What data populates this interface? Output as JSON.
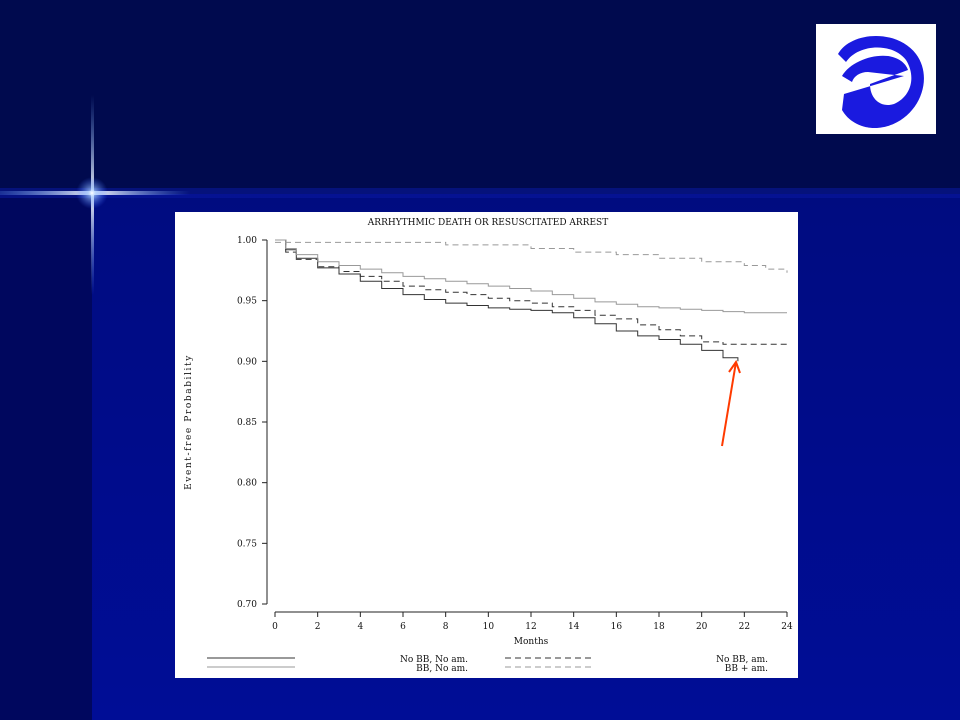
{
  "colors": {
    "slide_top": "#000a4e",
    "slide_main": "#000a86",
    "left_band": "#00075e",
    "flare": "#7fb3ff",
    "logo_blue": "#1a1adf",
    "arrow": "#ff3a00"
  },
  "logo": {
    "icon": "esc-logo-icon"
  },
  "chart_data": {
    "type": "line",
    "title": "ARRHYTHMIC DEATH OR RESUSCITATED ARREST",
    "xlabel": "Months",
    "ylabel": "Event-free Probability",
    "xlim": [
      0,
      24
    ],
    "ylim": [
      0.7,
      1.0
    ],
    "x_ticks": [
      "0",
      "2",
      "4",
      "6",
      "8",
      "10",
      "12",
      "14",
      "16",
      "18",
      "20",
      "22",
      "24"
    ],
    "y_ticks": [
      "0.70",
      "0.75",
      "0.80",
      "0.85",
      "0.90",
      "0.95",
      "1.00"
    ],
    "grid": false,
    "legend_position": "bottom",
    "series": [
      {
        "name": "No BB, No am.",
        "style": "solid",
        "color": "#333333",
        "points": [
          [
            0,
            1.0
          ],
          [
            0.5,
            0.992
          ],
          [
            1,
            0.985
          ],
          [
            2,
            0.977
          ],
          [
            3,
            0.972
          ],
          [
            4,
            0.966
          ],
          [
            5,
            0.96
          ],
          [
            6,
            0.955
          ],
          [
            7,
            0.951
          ],
          [
            8,
            0.948
          ],
          [
            9,
            0.946
          ],
          [
            10,
            0.944
          ],
          [
            11,
            0.943
          ],
          [
            12,
            0.942
          ],
          [
            13,
            0.94
          ],
          [
            14,
            0.936
          ],
          [
            15,
            0.931
          ],
          [
            16,
            0.925
          ],
          [
            17,
            0.921
          ],
          [
            18,
            0.918
          ],
          [
            19,
            0.914
          ],
          [
            20,
            0.909
          ],
          [
            21,
            0.903
          ],
          [
            21.7,
            0.9
          ]
        ]
      },
      {
        "name": "No BB, am.",
        "style": "dashed",
        "color": "#333333",
        "points": [
          [
            0,
            1.0
          ],
          [
            0.5,
            0.99
          ],
          [
            1,
            0.984
          ],
          [
            2,
            0.978
          ],
          [
            3,
            0.974
          ],
          [
            4,
            0.97
          ],
          [
            5,
            0.966
          ],
          [
            6,
            0.962
          ],
          [
            7,
            0.959
          ],
          [
            8,
            0.957
          ],
          [
            9,
            0.955
          ],
          [
            10,
            0.952
          ],
          [
            11,
            0.95
          ],
          [
            12,
            0.948
          ],
          [
            13,
            0.945
          ],
          [
            14,
            0.942
          ],
          [
            15,
            0.938
          ],
          [
            16,
            0.935
          ],
          [
            17,
            0.93
          ],
          [
            18,
            0.926
          ],
          [
            19,
            0.921
          ],
          [
            20,
            0.916
          ],
          [
            21,
            0.914
          ],
          [
            22,
            0.914
          ],
          [
            24,
            0.914
          ]
        ]
      },
      {
        "name": "BB, No am.",
        "style": "solid",
        "color": "#999999",
        "points": [
          [
            0,
            1.0
          ],
          [
            0.5,
            0.993
          ],
          [
            1,
            0.988
          ],
          [
            2,
            0.982
          ],
          [
            3,
            0.979
          ],
          [
            4,
            0.976
          ],
          [
            5,
            0.973
          ],
          [
            6,
            0.97
          ],
          [
            7,
            0.968
          ],
          [
            8,
            0.966
          ],
          [
            9,
            0.964
          ],
          [
            10,
            0.962
          ],
          [
            11,
            0.96
          ],
          [
            12,
            0.958
          ],
          [
            13,
            0.955
          ],
          [
            14,
            0.952
          ],
          [
            15,
            0.949
          ],
          [
            16,
            0.947
          ],
          [
            17,
            0.945
          ],
          [
            18,
            0.944
          ],
          [
            19,
            0.943
          ],
          [
            20,
            0.942
          ],
          [
            21,
            0.941
          ],
          [
            22,
            0.94
          ],
          [
            24,
            0.94
          ]
        ]
      },
      {
        "name": "BB + am.",
        "style": "dashed",
        "color": "#999999",
        "points": [
          [
            0,
            0.998
          ],
          [
            4,
            0.998
          ],
          [
            8,
            0.996
          ],
          [
            12,
            0.993
          ],
          [
            14,
            0.99
          ],
          [
            16,
            0.988
          ],
          [
            18,
            0.985
          ],
          [
            20,
            0.982
          ],
          [
            22,
            0.979
          ],
          [
            23,
            0.976
          ],
          [
            24,
            0.973
          ]
        ]
      }
    ]
  }
}
